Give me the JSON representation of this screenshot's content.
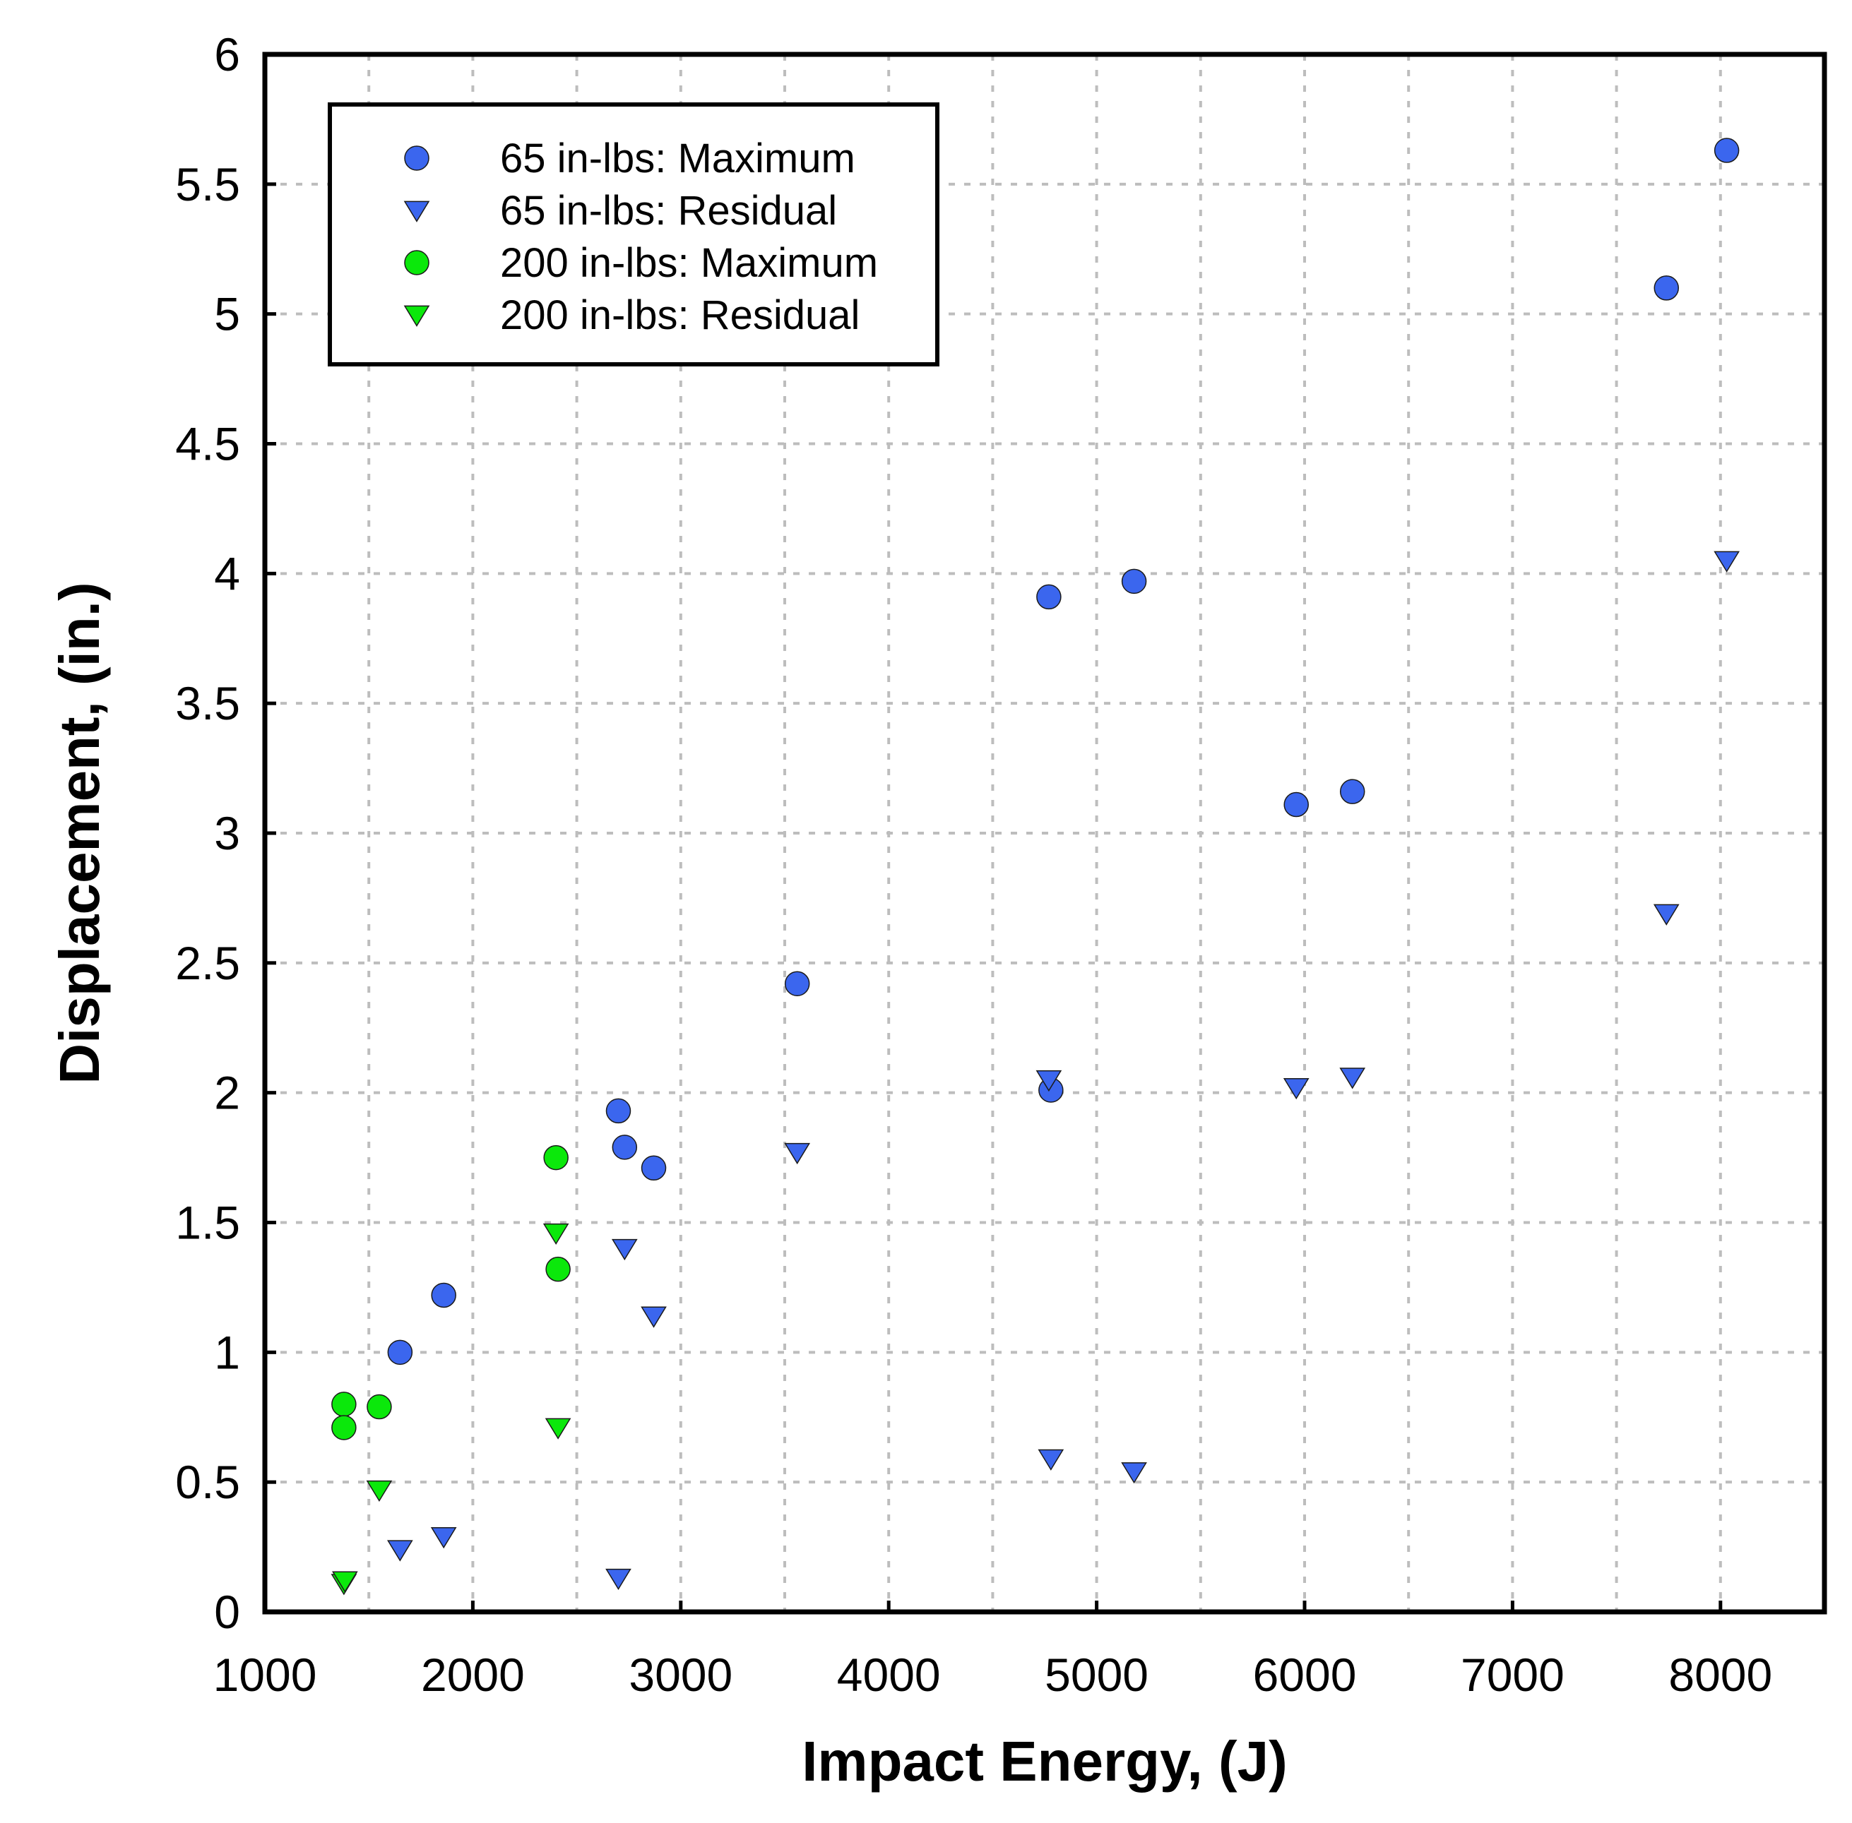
{
  "chart_data": {
    "type": "scatter",
    "title": "",
    "xlabel": "Impact Energy, (J)",
    "ylabel": "Displacement, (in.)",
    "xlim": [
      1000,
      8500
    ],
    "ylim": [
      0,
      6
    ],
    "x_ticks": [
      1000,
      2000,
      3000,
      4000,
      5000,
      6000,
      7000,
      8000
    ],
    "y_ticks": [
      0,
      0.5,
      1,
      1.5,
      2,
      2.5,
      3,
      3.5,
      4,
      4.5,
      5,
      5.5,
      6
    ],
    "x_tick_labels": [
      "1000",
      "2000",
      "3000",
      "4000",
      "5000",
      "6000",
      "7000",
      "8000"
    ],
    "y_tick_labels": [
      "0",
      "0.5",
      "1",
      "1.5",
      "2",
      "2.5",
      "3",
      "3.5",
      "4",
      "4.5",
      "5",
      "5.5",
      "6"
    ],
    "grid": true,
    "legend_position": "top-left",
    "series": [
      {
        "name": "65 in-lbs: Maximum",
        "marker": "circle",
        "color": "#3b66ee",
        "points": [
          [
            1650,
            1.0
          ],
          [
            1860,
            1.22
          ],
          [
            2700,
            1.93
          ],
          [
            2730,
            1.79
          ],
          [
            2870,
            1.71
          ],
          [
            3560,
            2.42
          ],
          [
            4770,
            3.91
          ],
          [
            4780,
            2.01
          ],
          [
            5180,
            3.97
          ],
          [
            5960,
            3.11
          ],
          [
            6230,
            3.16
          ],
          [
            7740,
            5.1
          ],
          [
            8030,
            5.63
          ]
        ]
      },
      {
        "name": "65 in-lbs: Residual",
        "marker": "triangle-down",
        "color": "#3b66ee",
        "points": [
          [
            1650,
            0.24
          ],
          [
            1860,
            0.29
          ],
          [
            2700,
            0.13
          ],
          [
            2730,
            1.4
          ],
          [
            2870,
            1.14
          ],
          [
            3560,
            1.77
          ],
          [
            4770,
            2.05
          ],
          [
            4780,
            0.59
          ],
          [
            5180,
            0.54
          ],
          [
            5960,
            2.02
          ],
          [
            6230,
            2.06
          ],
          [
            7740,
            2.69
          ],
          [
            8030,
            4.05
          ]
        ]
      },
      {
        "name": "200 in-lbs: Maximum",
        "marker": "circle",
        "color": "#0be80b",
        "points": [
          [
            1380,
            0.8
          ],
          [
            1380,
            0.71
          ],
          [
            1550,
            0.79
          ],
          [
            2400,
            1.75
          ],
          [
            2410,
            1.32
          ]
        ]
      },
      {
        "name": "200 in-lbs: Residual",
        "marker": "triangle-down",
        "color": "#0be80b",
        "points": [
          [
            1380,
            0.11
          ],
          [
            1385,
            0.12
          ],
          [
            1550,
            0.47
          ],
          [
            2400,
            1.46
          ],
          [
            2410,
            0.71
          ]
        ]
      }
    ]
  }
}
